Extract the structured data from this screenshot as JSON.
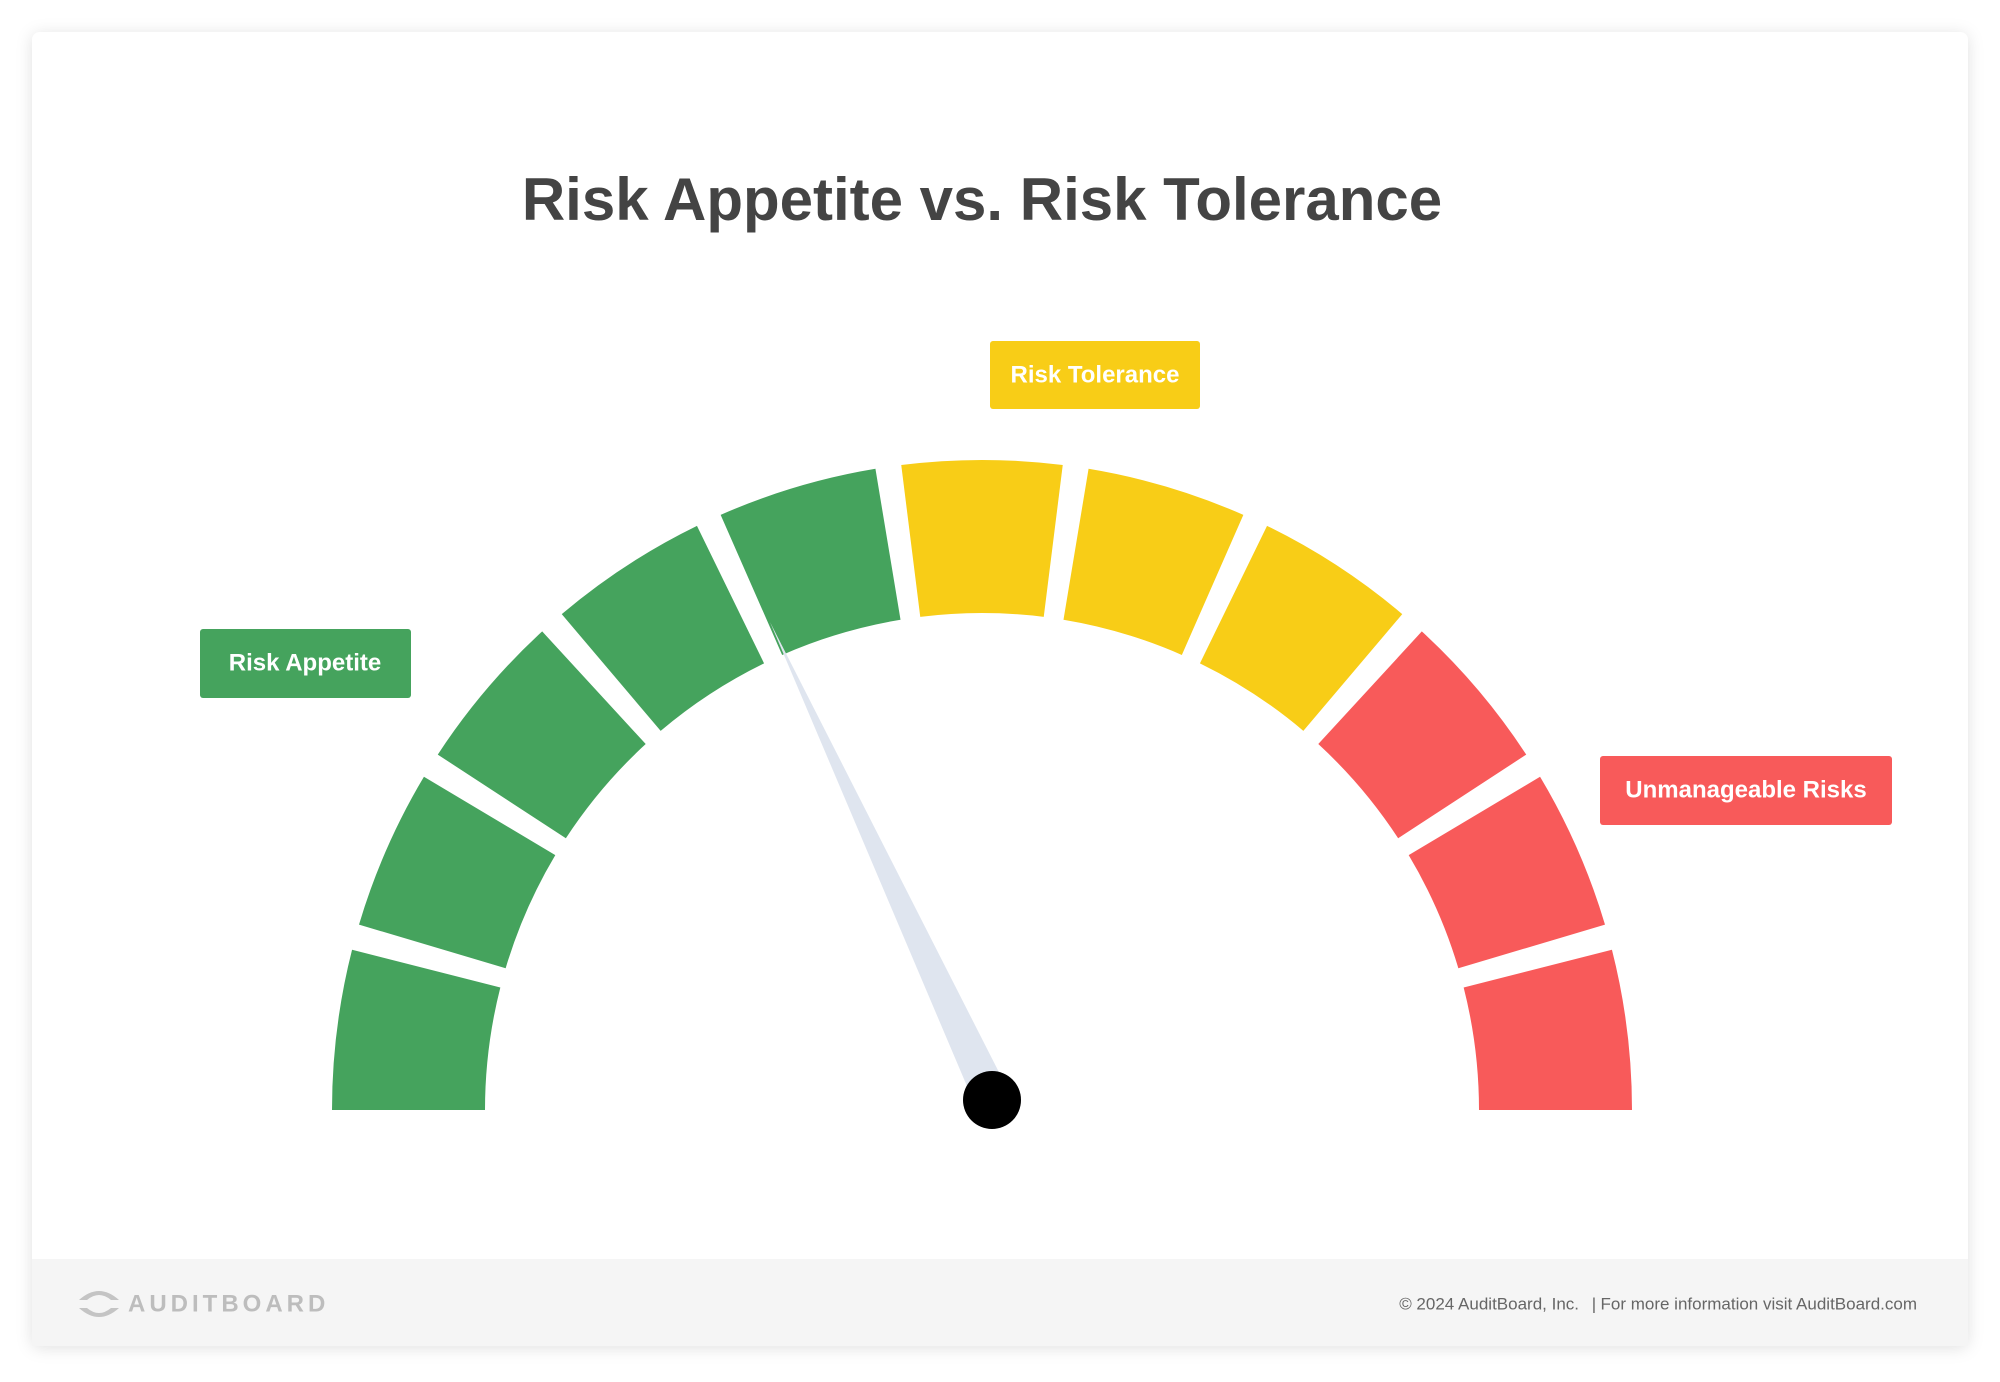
{
  "title": "Risk Appetite vs. Risk Tolerance",
  "labels": {
    "risk_appetite": "Risk Appetite",
    "risk_tolerance": "Risk Tolerance",
    "unmanageable_risks": "Unmanageable Risks"
  },
  "footer": {
    "logo": "AUDITBOARD",
    "copyright": "© 2024  AuditBoard, Inc.",
    "separator": "|",
    "info": "For more information visit AuditBoard.com"
  }
}
